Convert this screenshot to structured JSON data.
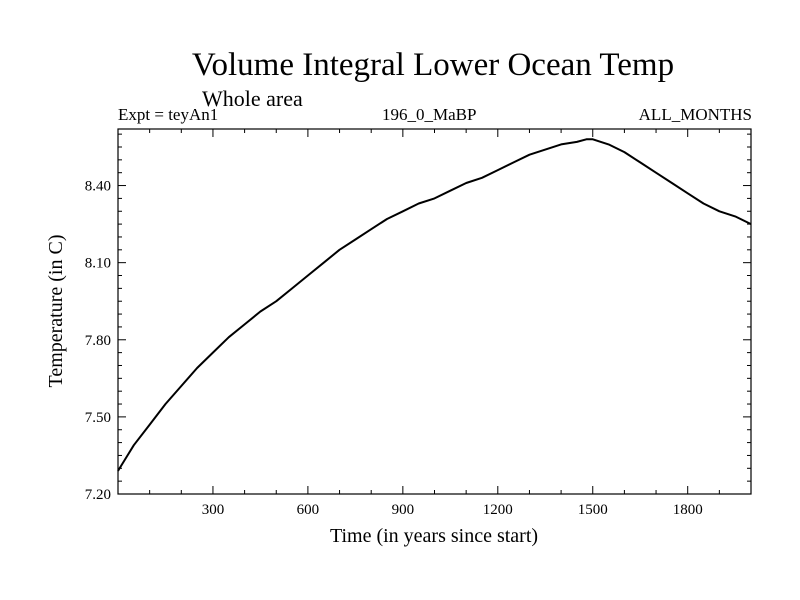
{
  "chart_data": {
    "type": "line",
    "title": "Volume Integral Lower Ocean Temp",
    "subtitle": "Whole area",
    "left_label": "Expt = teyAn1",
    "center_label": "196_0_MaBP",
    "right_label": "ALL_MONTHS",
    "xlabel": "Time (in years since start)",
    "ylabel": "Temperature (in C)",
    "xlim": [
      0,
      2000
    ],
    "ylim": [
      7.2,
      8.62
    ],
    "xticks": [
      300,
      600,
      900,
      1200,
      1500,
      1800
    ],
    "xtick_labels": [
      "300",
      "600",
      "900",
      "1200",
      "1500",
      "1800"
    ],
    "yticks": [
      7.2,
      7.5,
      7.8,
      8.1,
      8.4
    ],
    "ytick_labels": [
      "7.20",
      "7.50",
      "7.80",
      "8.10",
      "8.40"
    ],
    "grid": false,
    "series": [
      {
        "name": "teyAn1",
        "color": "#000000",
        "x": [
          0,
          50,
          100,
          150,
          200,
          250,
          300,
          350,
          400,
          450,
          500,
          550,
          600,
          650,
          700,
          750,
          800,
          850,
          900,
          950,
          1000,
          1050,
          1100,
          1150,
          1200,
          1250,
          1300,
          1350,
          1400,
          1450,
          1480,
          1500,
          1550,
          1600,
          1650,
          1700,
          1750,
          1800,
          1850,
          1900,
          1950,
          2000
        ],
        "values": [
          7.29,
          7.39,
          7.47,
          7.55,
          7.62,
          7.69,
          7.75,
          7.81,
          7.86,
          7.91,
          7.95,
          8.0,
          8.05,
          8.1,
          8.15,
          8.19,
          8.23,
          8.27,
          8.3,
          8.33,
          8.35,
          8.38,
          8.41,
          8.43,
          8.46,
          8.49,
          8.52,
          8.54,
          8.56,
          8.57,
          8.58,
          8.58,
          8.56,
          8.53,
          8.49,
          8.45,
          8.41,
          8.37,
          8.33,
          8.3,
          8.28,
          8.25
        ]
      }
    ]
  }
}
